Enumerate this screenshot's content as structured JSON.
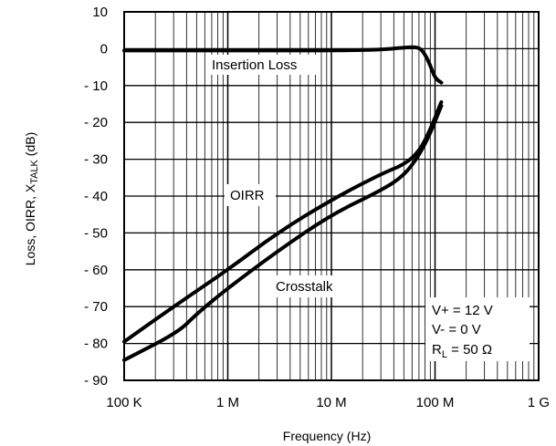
{
  "chart_data": {
    "type": "line",
    "title": "",
    "xlabel": "Frequency (Hz)",
    "ylabel_parts": [
      "Loss, OIRR, X",
      "TALK",
      "  (dB)"
    ],
    "x_scale": "log",
    "xlim": [
      100000,
      1000000000
    ],
    "ylim": [
      -90,
      10
    ],
    "x_ticks": [
      {
        "value": 100000,
        "label": "100 K"
      },
      {
        "value": 1000000,
        "label": "1 M"
      },
      {
        "value": 10000000,
        "label": "10 M"
      },
      {
        "value": 100000000,
        "label": "100 M"
      },
      {
        "value": 1000000000,
        "label": "1 G"
      }
    ],
    "y_ticks": [
      {
        "value": 10,
        "label": "10"
      },
      {
        "value": 0,
        "label": "0"
      },
      {
        "value": -10,
        "label": "- 10"
      },
      {
        "value": -20,
        "label": "- 20"
      },
      {
        "value": -30,
        "label": "- 30"
      },
      {
        "value": -40,
        "label": "- 40"
      },
      {
        "value": -50,
        "label": "- 50"
      },
      {
        "value": -60,
        "label": "- 60"
      },
      {
        "value": -70,
        "label": "- 70"
      },
      {
        "value": -80,
        "label": "- 80"
      },
      {
        "value": -90,
        "label": "- 90"
      }
    ],
    "grid": true,
    "series": [
      {
        "name": "Insertion Loss",
        "x": [
          100000,
          1000000,
          10000000,
          30000000,
          50000000,
          70000000,
          80000000,
          90000000,
          100000000,
          115000000
        ],
        "y": [
          -0.5,
          -0.5,
          -0.5,
          -0.3,
          0.3,
          0.5,
          -1.5,
          -4.5,
          -8,
          -9.2
        ]
      },
      {
        "name": "OIRR",
        "x": [
          100000,
          300000,
          1000000,
          3000000,
          10000000,
          30000000,
          50000000,
          70000000,
          90000000,
          115000000
        ],
        "y": [
          -79.5,
          -70,
          -60,
          -50,
          -41,
          -34,
          -31.5,
          -28,
          -22,
          -14.5
        ]
      },
      {
        "name": "Crosstalk",
        "x": [
          100000,
          330000,
          500000,
          1000000,
          3000000,
          10000000,
          30000000,
          50000000,
          70000000,
          90000000,
          115000000
        ],
        "y": [
          -84.5,
          -77,
          -72,
          -65,
          -55,
          -45,
          -38.5,
          -34.5,
          -29,
          -23,
          -15.5
        ]
      }
    ],
    "labels": {
      "insertion": "Insertion Loss",
      "oirr": "OIRR",
      "crosstalk": "Crosstalk"
    },
    "conditions": {
      "line1": "V+ = 12 V",
      "line2": "V- = 0 V",
      "line3_prefix": "R",
      "line3_sub": "L",
      "line3_suffix": " = 50 Ω"
    }
  }
}
